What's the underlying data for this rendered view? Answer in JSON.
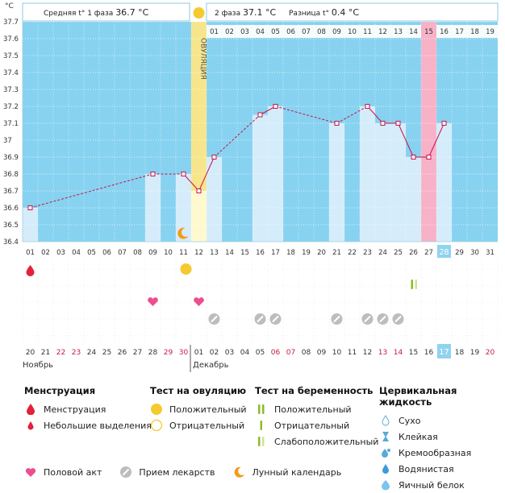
{
  "chart_data": {
    "type": "line",
    "y_unit_label": "°C",
    "ylim": [
      36.4,
      37.7
    ],
    "y_ticks": [
      "37.7",
      "37.6",
      "37.5",
      "37.4",
      "37.3",
      "37.2",
      "37.1",
      "37",
      "36.9",
      "36.8",
      "36.7",
      "36.6",
      "36.5",
      "36.4"
    ],
    "x_days": [
      "01",
      "02",
      "03",
      "04",
      "05",
      "06",
      "07",
      "08",
      "09",
      "10",
      "11",
      "12",
      "13",
      "14",
      "15",
      "16",
      "17",
      "18",
      "19",
      "20",
      "21",
      "22",
      "23",
      "24",
      "25",
      "26",
      "27",
      "28",
      "29",
      "30",
      "31"
    ],
    "cycle_days": [
      "01",
      "02",
      "03",
      "04",
      "05",
      "06",
      "07",
      "08",
      "09",
      "10",
      "11",
      "12",
      "13",
      "14",
      "15",
      "16",
      "17",
      "18",
      "19"
    ],
    "highlight_cycle_day": "15",
    "today_day": "28",
    "ovulation_day": 12,
    "ovulation_label": "ОВУЛЯЦИЯ",
    "series": [
      {
        "points": [
          {
            "day": 1,
            "temp": 36.6
          },
          {
            "day": 9,
            "temp": 36.8
          },
          {
            "day": 11,
            "temp": 36.8
          },
          {
            "day": 12,
            "temp": 36.7
          },
          {
            "day": 13,
            "temp": 36.9
          },
          {
            "day": 16,
            "temp": 37.15
          },
          {
            "day": 17,
            "temp": 37.2
          },
          {
            "day": 21,
            "temp": 37.1
          },
          {
            "day": 23,
            "temp": 37.2
          },
          {
            "day": 24,
            "temp": 37.1
          },
          {
            "day": 25,
            "temp": 37.1
          },
          {
            "day": 26,
            "temp": 36.9
          },
          {
            "day": 27,
            "temp": 36.9
          },
          {
            "day": 28,
            "temp": 37.1
          }
        ]
      }
    ],
    "header": {
      "phase1_label": "Средняя t° 1 фаза",
      "phase1_value": "36.7 °C",
      "phase2_label": "2 фаза",
      "phase2_value": "37.1 °C",
      "diff_label": "Разница t°",
      "diff_value": "0.4 °C"
    },
    "events": {
      "menstruation_days": [
        1
      ],
      "ovulation_test_positive_days": [
        11
      ],
      "lunar_days": [
        11
      ],
      "pregnancy_test_weak_days": [
        26
      ],
      "intercourse_days": [
        9,
        12
      ],
      "medication_days": [
        13,
        16,
        17,
        21,
        23,
        24,
        25
      ]
    },
    "calendar": {
      "dates": [
        "20",
        "21",
        "22",
        "23",
        "24",
        "25",
        "26",
        "27",
        "28",
        "29",
        "30",
        "01",
        "02",
        "03",
        "04",
        "05",
        "06",
        "07",
        "08",
        "09",
        "10",
        "11",
        "12",
        "13",
        "14",
        "15",
        "16",
        "17",
        "18",
        "19",
        "20"
      ],
      "red_indices": [
        2,
        3,
        9,
        10,
        16,
        17,
        23,
        24,
        30
      ],
      "today_index": 27,
      "month1": "Ноябрь",
      "month2": "Декабрь"
    },
    "colors": {
      "sky": "#87d2f0",
      "bar": "#d5ecfa",
      "line": "#c5144e",
      "ovulation": "#f6e58c",
      "highlight": "#f7b2c7",
      "white_grid": "#ffffff",
      "red_text": "#c8193d",
      "today_bg": "#8fd3ef"
    }
  },
  "legend": {
    "menstruation": {
      "title": "Менструация",
      "items": [
        "Менструация",
        "Небольшие выделения"
      ]
    },
    "ovulation_test": {
      "title": "Тест на овуляцию",
      "items": [
        "Положительный",
        "Отрицательный"
      ]
    },
    "pregnancy_test": {
      "title": "Тест на беременность",
      "items": [
        "Положительный",
        "Отрицательный",
        "Слабоположительный"
      ]
    },
    "cervical_fluid": {
      "title": "Цервикальная жидкость",
      "items": [
        "Сухо",
        "Клейкая",
        "Кремообразная",
        "Водянистая",
        "Яичный белок"
      ]
    },
    "bottom": [
      "Половой акт",
      "Прием лекарств",
      "Лунный календарь"
    ]
  }
}
